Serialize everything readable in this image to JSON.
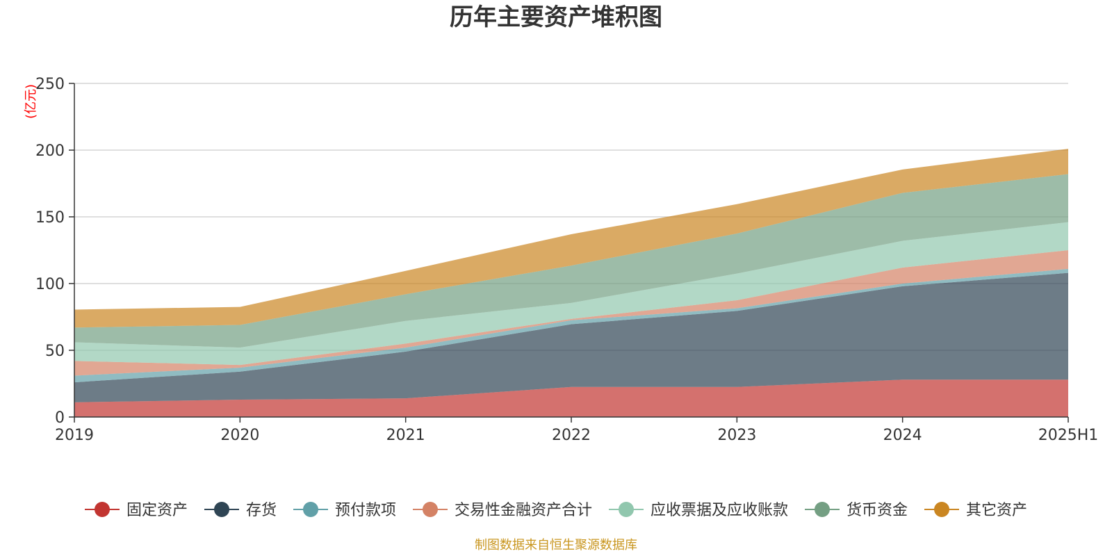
{
  "chart_data": {
    "type": "area",
    "stacked": true,
    "title": "历年主要资产堆积图",
    "unit_label": "(亿元)",
    "x": [
      "2019",
      "2020",
      "2021",
      "2022",
      "2023",
      "2024",
      "2025H1"
    ],
    "ylim": [
      0,
      250
    ],
    "yticks": [
      0,
      50,
      100,
      150,
      200,
      250
    ],
    "grid": true,
    "legend_position": "bottom",
    "series": [
      {
        "name": "固定资产",
        "color": "#c23531",
        "values": [
          11,
          13,
          14,
          22.5,
          22.5,
          28,
          28
        ]
      },
      {
        "name": "存货",
        "color": "#2f4554",
        "values": [
          15,
          21,
          35,
          47,
          57,
          70,
          80
        ]
      },
      {
        "name": "预付款项",
        "color": "#61a0a8",
        "values": [
          5,
          3,
          3,
          3,
          2,
          2,
          3
        ]
      },
      {
        "name": "交易性金融资产合计",
        "color": "#d48265",
        "values": [
          11,
          2,
          3,
          1,
          6,
          12,
          14
        ]
      },
      {
        "name": "应收票据及应收账款",
        "color": "#91c7ae",
        "values": [
          14,
          13,
          17,
          12,
          20,
          20,
          21
        ]
      },
      {
        "name": "货币资金",
        "color": "#749f83",
        "values": [
          11,
          17,
          20,
          28,
          30,
          36,
          36
        ]
      },
      {
        "name": "其它资产",
        "color": "#ca8622",
        "values": [
          13.5,
          13.5,
          17.5,
          23.5,
          22,
          17.5,
          19
        ]
      }
    ],
    "source": "制图数据来自恒生聚源数据库"
  }
}
